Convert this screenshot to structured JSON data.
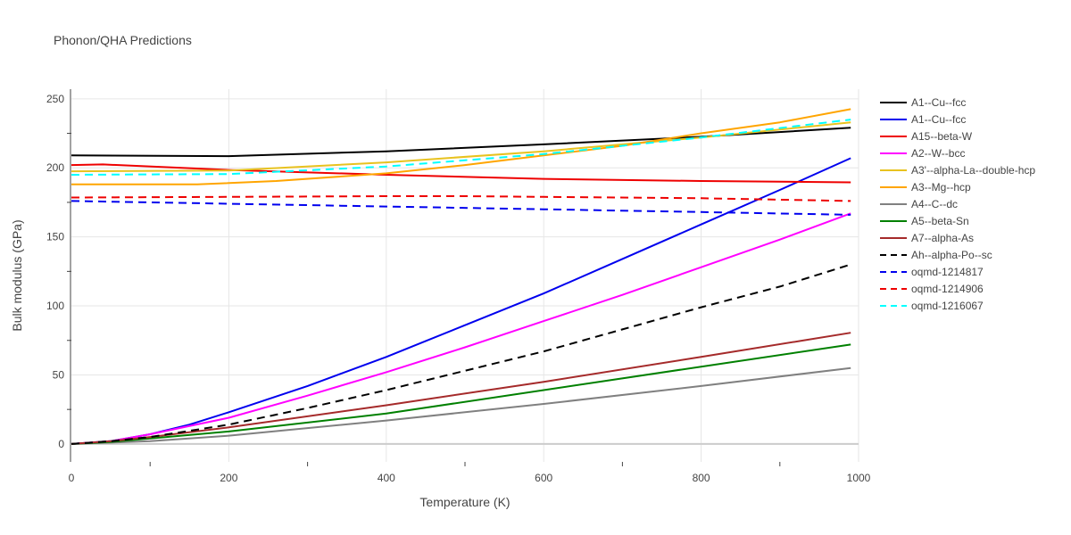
{
  "chart_data": {
    "type": "line",
    "title": "Phonon/QHA Predictions",
    "xlabel": "Temperature (K)",
    "ylabel": "Bulk modulus (GPa)",
    "xlim": [
      0,
      1000
    ],
    "ylim": [
      -13,
      257
    ],
    "xticks": [
      0,
      200,
      400,
      600,
      800,
      1000
    ],
    "yticks": [
      0,
      50,
      100,
      150,
      200,
      250
    ],
    "grid": true,
    "legend_position": "right",
    "series": [
      {
        "name": "A1--Cu--fcc",
        "color": "#000000",
        "dash": "solid",
        "x": [
          0,
          200,
          400,
          600,
          800,
          990
        ],
        "y": [
          209,
          208.5,
          212,
          217,
          222.5,
          229
        ]
      },
      {
        "name": "A1--Cu--fcc",
        "color": "#0000ee",
        "dash": "solid",
        "x": [
          0,
          50,
          100,
          150,
          200,
          300,
          400,
          500,
          600,
          700,
          800,
          900,
          990
        ],
        "y": [
          0,
          2,
          7,
          14,
          23,
          42,
          63,
          86,
          109,
          134,
          159,
          184,
          207
        ]
      },
      {
        "name": "A15--beta-W",
        "color": "#ee0000",
        "dash": "solid",
        "x": [
          0,
          40,
          200,
          400,
          600,
          800,
          990
        ],
        "y": [
          202,
          202.5,
          198.5,
          195,
          192,
          190.5,
          189.5
        ]
      },
      {
        "name": "A2--W--bcc",
        "color": "#ff00ff",
        "dash": "solid",
        "x": [
          0,
          50,
          100,
          200,
          300,
          400,
          500,
          600,
          700,
          800,
          900,
          990
        ],
        "y": [
          0,
          2,
          7,
          19,
          35,
          52,
          70,
          89,
          108,
          128,
          148,
          167
        ]
      },
      {
        "name": "A3'--alpha-La--double-hcp",
        "color": "#e8c21f",
        "dash": "solid",
        "x": [
          0,
          200,
          400,
          600,
          800,
          990
        ],
        "y": [
          197.5,
          198,
          204,
          212,
          222,
          233
        ]
      },
      {
        "name": "A3--Mg--hcp",
        "color": "#ffa500",
        "dash": "solid",
        "x": [
          0,
          160,
          260,
          400,
          500,
          600,
          700,
          800,
          900,
          990
        ],
        "y": [
          188,
          188,
          190.5,
          196,
          202,
          209,
          216,
          225,
          233,
          242.5
        ]
      },
      {
        "name": "A4--C--dc",
        "color": "#808080",
        "dash": "solid",
        "x": [
          0,
          100,
          200,
          400,
          600,
          800,
          990
        ],
        "y": [
          0,
          2,
          6,
          17,
          29,
          42,
          55
        ]
      },
      {
        "name": "A5--beta-Sn",
        "color": "#008000",
        "dash": "solid",
        "x": [
          0,
          50,
          100,
          200,
          400,
          600,
          800,
          990
        ],
        "y": [
          0,
          1.5,
          4,
          9,
          22,
          39,
          56,
          72
        ]
      },
      {
        "name": "A7--alpha-As",
        "color": "#a52a2a",
        "dash": "solid",
        "x": [
          0,
          50,
          100,
          200,
          400,
          600,
          800,
          990
        ],
        "y": [
          0,
          2,
          5,
          12,
          28,
          45,
          63,
          80.5
        ]
      },
      {
        "name": "Ah--alpha-Po--sc",
        "color": "#000000",
        "dash": "dash",
        "x": [
          0,
          50,
          100,
          200,
          300,
          400,
          500,
          600,
          700,
          800,
          900,
          990
        ],
        "y": [
          0,
          2,
          5,
          14,
          26,
          39,
          53,
          67,
          83,
          99,
          114,
          130
        ]
      },
      {
        "name": "oqmd-1214817",
        "color": "#0000ee",
        "dash": "dash",
        "x": [
          0,
          200,
          400,
          600,
          800,
          990
        ],
        "y": [
          176,
          174,
          172,
          170,
          168,
          166
        ]
      },
      {
        "name": "oqmd-1214906",
        "color": "#ee0000",
        "dash": "dash",
        "x": [
          0,
          200,
          400,
          500,
          600,
          800,
          990
        ],
        "y": [
          178.5,
          179,
          179.5,
          179.5,
          179,
          178,
          176
        ]
      },
      {
        "name": "oqmd-1216067",
        "color": "#00ffff",
        "dash": "dash",
        "x": [
          0,
          200,
          400,
          600,
          800,
          990
        ],
        "y": [
          195,
          195.5,
          201,
          210,
          222,
          235
        ]
      }
    ]
  }
}
